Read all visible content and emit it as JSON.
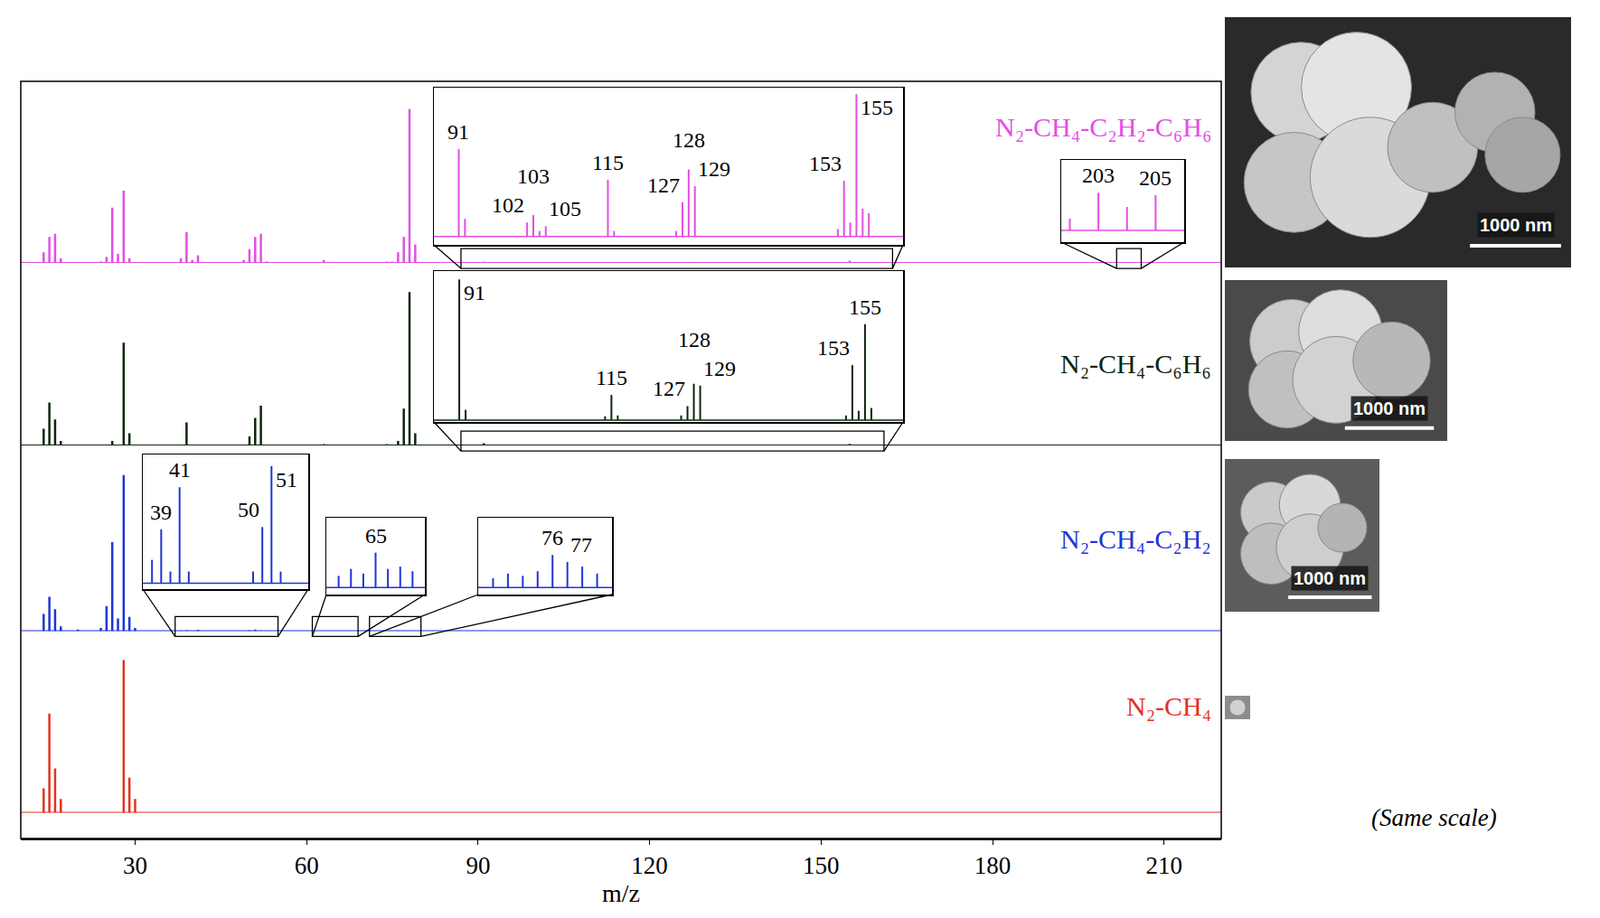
{
  "chart_data": {
    "type": "stem",
    "x_label": "m/z",
    "xlim": [
      10,
      220
    ],
    "xticks": [
      30,
      60,
      90,
      120,
      150,
      180,
      210
    ],
    "ylim": [
      0,
      118
    ],
    "tick_labels": "x",
    "grid": false,
    "series": [
      {
        "name": "N₂-CH₄-C₂H₂-C₆H₆",
        "color": "#e34fe3",
        "x": [
          14,
          15,
          16,
          17,
          24,
          25,
          26,
          27,
          28,
          29,
          38,
          39,
          40,
          41,
          49,
          50,
          51,
          52,
          53,
          63,
          74,
          75,
          76,
          77,
          78,
          79,
          80,
          91,
          92,
          102,
          103,
          104,
          105,
          115,
          116,
          126,
          127,
          128,
          129,
          152,
          153,
          154,
          155,
          156,
          157,
          202,
          203,
          204,
          205
        ],
        "values": [
          7,
          17,
          19,
          3,
          1,
          4,
          36,
          6,
          47,
          3,
          3,
          20,
          2,
          5,
          2,
          9,
          17,
          19,
          1,
          2,
          1,
          1,
          7,
          17,
          100,
          12,
          0.5,
          0.94,
          0.19,
          0.15,
          0.23,
          0.06,
          0.11,
          0.61,
          0.06,
          0.06,
          0.37,
          0.72,
          0.54,
          0.08,
          0.6,
          0.15,
          1.53,
          0.3,
          0.25,
          0.05,
          0.16,
          0.1,
          0.15
        ],
        "insets": [
          {
            "xlim": [
              87,
              162.5
            ],
            "ylim": [
              -0.09,
              1.6
            ],
            "peak_labels": [
              91,
              102,
              103,
              105,
              115,
              127,
              128,
              129,
              153,
              155
            ]
          },
          {
            "xlim": [
              201.7,
              206
            ],
            "ylim": [
              -0.05,
              0.3
            ],
            "peak_labels": [
              203,
              205
            ]
          }
        ]
      },
      {
        "name": "N₂-CH₄-C₆H₆",
        "color": "#0d260d",
        "x": [
          14,
          15,
          16,
          17,
          26,
          28,
          29,
          39,
          50,
          51,
          52,
          63,
          74,
          76,
          77,
          78,
          79,
          91,
          92,
          114,
          115,
          116,
          126,
          127,
          128,
          129,
          152,
          153,
          154,
          155,
          156
        ],
        "values": [
          11,
          28,
          17,
          3,
          3,
          67,
          8,
          15,
          6,
          18,
          26,
          1,
          1,
          3,
          24,
          100,
          8,
          1.51,
          0.11,
          0.04,
          0.27,
          0.05,
          0.05,
          0.15,
          0.39,
          0.37,
          0.05,
          0.59,
          0.1,
          1.03,
          0.13
        ],
        "insets": [
          {
            "xlim": [
              87,
              161
            ],
            "ylim": [
              -0.02,
              1.6
            ],
            "peak_labels": [
              91,
              115,
              127,
              128,
              129,
              153,
              155
            ]
          }
        ]
      },
      {
        "name": "N₂-CH₄-C₂H₂",
        "color": "#1f35d6",
        "x": [
          14,
          15,
          16,
          17,
          20,
          24,
          25,
          26,
          27,
          28,
          29,
          30,
          38,
          39,
          40,
          41,
          42,
          49,
          50,
          51,
          52,
          62,
          63,
          64,
          65,
          66,
          67,
          68,
          72,
          73,
          74,
          75,
          76,
          77,
          78,
          79
        ],
        "values": [
          11,
          22,
          14,
          3,
          1,
          2,
          16,
          57,
          8,
          100,
          9,
          2,
          0.2,
          0.46,
          0.1,
          0.82,
          0.1,
          0.1,
          0.48,
          1.0,
          0.1,
          0.05,
          0.08,
          0.06,
          0.15,
          0.08,
          0.09,
          0.07,
          0.04,
          0.06,
          0.05,
          0.07,
          0.14,
          0.11,
          0.09,
          0.06
        ],
        "insets": [
          {
            "xlim": [
              37,
              55
            ],
            "ylim": [
              -0.05,
              1.1
            ],
            "peak_labels": [
              39,
              41,
              50,
              51
            ]
          },
          {
            "xlim": [
              61,
              69
            ],
            "ylim": [
              -0.03,
              0.3
            ],
            "peak_labels": [
              65
            ]
          },
          {
            "xlim": [
              71,
              80
            ],
            "ylim": [
              -0.03,
              0.3
            ],
            "peak_labels": [
              76,
              77
            ]
          }
        ]
      },
      {
        "name": "N₂-CH₄",
        "color": "#e2331f",
        "x": [
          14,
          15,
          16,
          17,
          28,
          29,
          30
        ],
        "values": [
          16,
          65,
          29,
          9,
          100,
          23,
          9
        ],
        "insets": []
      }
    ],
    "scale_bars": [
      "1000 nm",
      "1000 nm",
      "1000 nm"
    ],
    "note": "(Same scale)"
  }
}
